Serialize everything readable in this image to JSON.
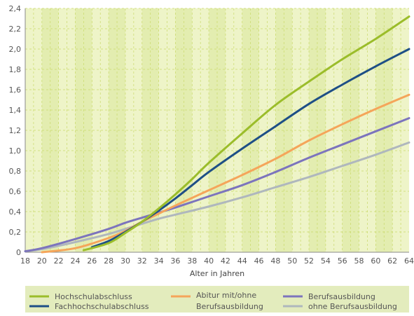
{
  "chart_data": {
    "type": "line",
    "title": "",
    "xlabel": "Alter in Jahren",
    "ylabel": "",
    "xlim": [
      18,
      64
    ],
    "ylim": [
      0,
      2.4
    ],
    "x_ticks": [
      "18",
      "20",
      "22",
      "24",
      "26",
      "28",
      "30",
      "32",
      "34",
      "36",
      "38",
      "40",
      "42",
      "44",
      "46",
      "48",
      "50",
      "52",
      "54",
      "56",
      "58",
      "60",
      "62",
      "64"
    ],
    "y_ticks": [
      "0",
      "0,2",
      "0,4",
      "0,6",
      "0,8",
      "1,0",
      "1,2",
      "1,4",
      "1,6",
      "1,8",
      "2,0",
      "2,2",
      "2,4"
    ],
    "grid": true,
    "legend_placement": "bottom",
    "series": [
      {
        "name": "Hochschulabschluss",
        "color": "#9bbd2a",
        "x": [
          25,
          28,
          30,
          32,
          34,
          36,
          38,
          40,
          44,
          48,
          52,
          56,
          60,
          64
        ],
        "y": [
          0.02,
          0.09,
          0.19,
          0.3,
          0.43,
          0.57,
          0.72,
          0.88,
          1.17,
          1.45,
          1.68,
          1.9,
          2.1,
          2.32
        ]
      },
      {
        "name": "Fachhochschulabschluss",
        "color": "#1e4f86",
        "x": [
          26,
          28,
          30,
          32,
          34,
          36,
          38,
          40,
          44,
          48,
          52,
          56,
          60,
          64
        ],
        "y": [
          0.05,
          0.11,
          0.2,
          0.3,
          0.41,
          0.53,
          0.66,
          0.79,
          1.02,
          1.24,
          1.46,
          1.65,
          1.83,
          2.0
        ]
      },
      {
        "name": "Abitur mit/ohne Berufsausbildung",
        "color": "#f5a55a",
        "x": [
          20,
          24,
          28,
          30,
          32,
          34,
          36,
          40,
          44,
          48,
          52,
          56,
          60,
          64
        ],
        "y": [
          0.0,
          0.04,
          0.14,
          0.21,
          0.3,
          0.38,
          0.46,
          0.61,
          0.76,
          0.92,
          1.1,
          1.26,
          1.41,
          1.55
        ]
      },
      {
        "name": "Berufsausbildung",
        "color": "#7c74bd",
        "x": [
          18,
          20,
          24,
          28,
          30,
          32,
          34,
          36,
          40,
          44,
          48,
          52,
          56,
          60,
          64
        ],
        "y": [
          0.01,
          0.04,
          0.13,
          0.23,
          0.29,
          0.34,
          0.39,
          0.44,
          0.55,
          0.66,
          0.79,
          0.93,
          1.06,
          1.19,
          1.32
        ]
      },
      {
        "name": "ohne Berufsausbildung",
        "color": "#afb7bd",
        "x": [
          18,
          20,
          24,
          28,
          30,
          32,
          34,
          36,
          40,
          44,
          48,
          52,
          56,
          60,
          64
        ],
        "y": [
          0.01,
          0.03,
          0.1,
          0.18,
          0.23,
          0.28,
          0.33,
          0.37,
          0.45,
          0.54,
          0.64,
          0.74,
          0.85,
          0.96,
          1.08
        ]
      }
    ]
  },
  "legend": {
    "items": [
      {
        "label": "Hochschulabschluss",
        "color": "#9bbd2a"
      },
      {
        "label": "Fachhochschulabschluss",
        "color": "#1e4f86"
      },
      {
        "label": "Abitur mit/ohne",
        "label2": "Berufsausbildung",
        "color": "#f5a55a"
      },
      {
        "label": "Berufsausbildung",
        "color": "#7c74bd"
      },
      {
        "label": "ohne Berufsausbildung",
        "color": "#afb7bd"
      }
    ]
  },
  "colors": {
    "plot_background": "#eef4c8",
    "plot_band": "#e3edb0",
    "grid": "#c9d96a",
    "legend_background": "#e3ecbd"
  }
}
